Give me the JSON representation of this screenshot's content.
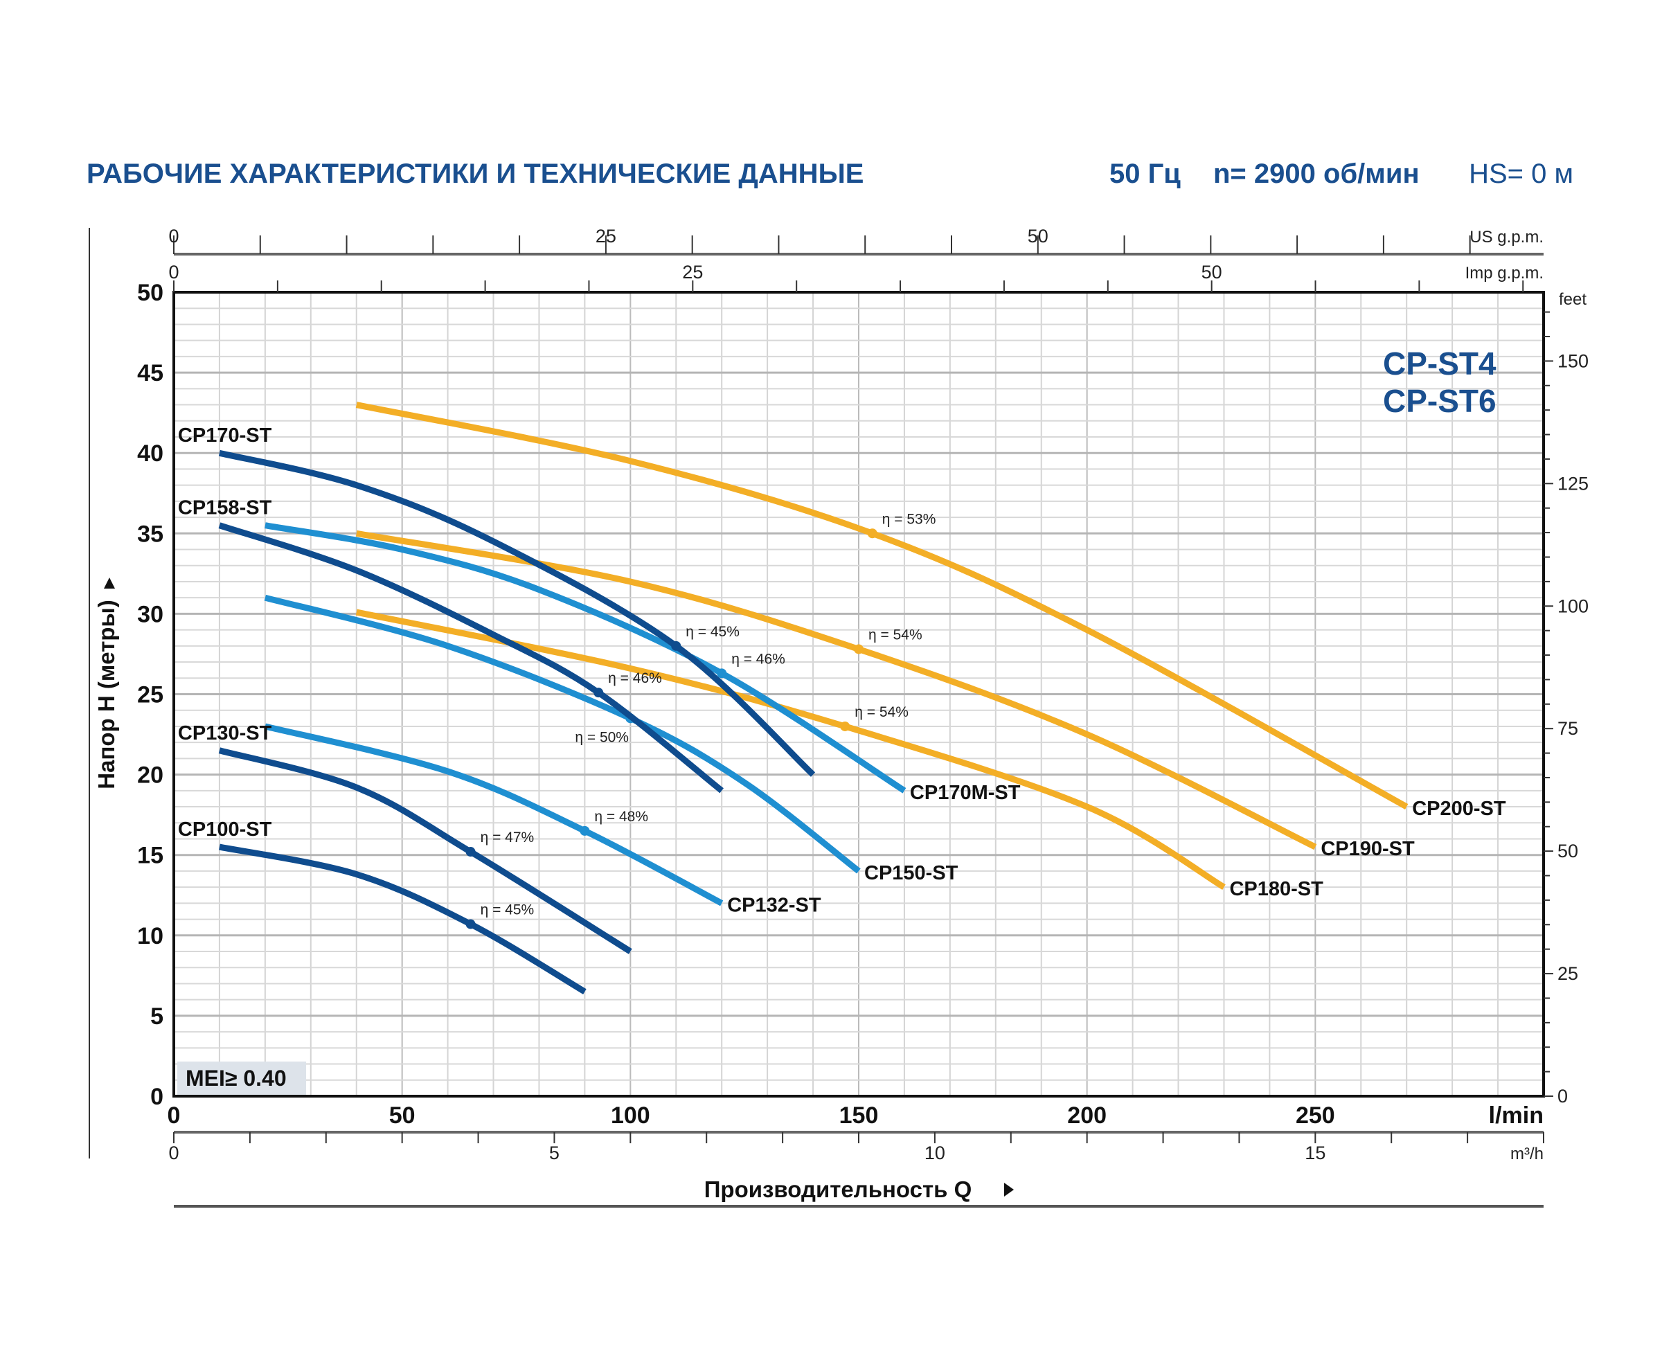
{
  "header": {
    "title": "РАБОЧИЕ ХАРАКТЕРИСТИКИ И ТЕХНИЧЕСКИЕ ДАННЫЕ",
    "frequency": "50 Гц",
    "speed": "n= 2900 об/мин",
    "hs": "HS= 0 м"
  },
  "series_names": [
    "CP-ST4",
    "CP-ST6"
  ],
  "mei_label": "MEI≥ 0.40",
  "colors": {
    "dark": "#0f4c8e",
    "light": "#1f8fd1",
    "orange": "#f3ae26",
    "title": "#1a4f8f"
  },
  "chart_data": {
    "type": "line",
    "xlabel": "Производительность Q",
    "ylabel": "Напор H (метры)",
    "xlim": [
      0,
      300
    ],
    "ylim": [
      0,
      50
    ],
    "x_unit": "l/min",
    "x_ticks": [
      0,
      50,
      100,
      150,
      200,
      250
    ],
    "y_ticks": [
      0,
      5,
      10,
      15,
      20,
      25,
      30,
      35,
      40,
      45,
      50
    ],
    "grid": true,
    "secondary_axes": {
      "us_gpm": {
        "unit": "US g.p.m.",
        "ticks": [
          0,
          25,
          50
        ]
      },
      "imp_gpm": {
        "unit": "Imp g.p.m.",
        "ticks": [
          0,
          25,
          50
        ]
      },
      "m3h": {
        "unit": "m³/h",
        "ticks": [
          0,
          5,
          10,
          15
        ]
      },
      "feet": {
        "unit": "feet",
        "ticks": [
          0,
          25,
          50,
          75,
          100,
          125,
          150
        ]
      }
    },
    "series": [
      {
        "name": "CP200-ST",
        "color": "orange",
        "label_side": "end",
        "x": [
          40,
          100,
          153,
          200,
          270
        ],
        "y": [
          43,
          39.5,
          35,
          29,
          18
        ],
        "eff": {
          "x": 153,
          "y": 35,
          "label": "η = 53%"
        }
      },
      {
        "name": "CP190-ST",
        "color": "orange",
        "label_side": "end",
        "x": [
          40,
          100,
          150,
          200,
          250
        ],
        "y": [
          35,
          32,
          27.8,
          22.5,
          15.5
        ],
        "eff": {
          "x": 150,
          "y": 27.8,
          "label": "η = 54%"
        }
      },
      {
        "name": "CP180-ST",
        "color": "orange",
        "label_side": "end",
        "x": [
          40,
          100,
          147,
          200,
          230
        ],
        "y": [
          30.1,
          26.6,
          23,
          18,
          13
        ],
        "eff": {
          "x": 147,
          "y": 23,
          "label": "η = 54%"
        }
      },
      {
        "name": "CP170M-ST",
        "color": "light",
        "label_side": "end",
        "x": [
          20,
          50,
          80,
          120,
          160
        ],
        "y": [
          35.5,
          34,
          31.5,
          26.3,
          19
        ],
        "eff": {
          "x": 120,
          "y": 26.3,
          "label": "η = 46%"
        }
      },
      {
        "name": "CP150-ST",
        "color": "light",
        "label_side": "end",
        "x": [
          20,
          60,
          100,
          125,
          150
        ],
        "y": [
          31,
          28,
          23.5,
          19.5,
          14
        ],
        "eff": {
          "x": 100,
          "y": 23.5,
          "label": "η = 50%"
        }
      },
      {
        "name": "CP132-ST",
        "color": "light",
        "label_side": "end",
        "x": [
          20,
          60,
          90,
          120
        ],
        "y": [
          23,
          20.2,
          16.5,
          12
        ],
        "eff": {
          "x": 90,
          "y": 16.5,
          "label": "η = 48%"
        }
      },
      {
        "name": "CP170-ST",
        "color": "dark",
        "label_side": "start",
        "x": [
          10,
          40,
          70,
          110,
          140
        ],
        "y": [
          40,
          38,
          34.5,
          28,
          20
        ],
        "eff": {
          "x": 110,
          "y": 28,
          "label": "η = 45%"
        }
      },
      {
        "name": "CP158-ST",
        "color": "dark",
        "label_side": "start",
        "x": [
          10,
          40,
          70,
          93,
          120
        ],
        "y": [
          35.5,
          32.7,
          28.7,
          25.1,
          19
        ],
        "eff": {
          "x": 93,
          "y": 25.1,
          "label": "η = 46%"
        }
      },
      {
        "name": "CP130-ST",
        "color": "dark",
        "label_side": "start",
        "x": [
          10,
          40,
          65,
          100
        ],
        "y": [
          21.5,
          19.2,
          15.2,
          9
        ],
        "eff": {
          "x": 65,
          "y": 15.2,
          "label": "η = 47%"
        }
      },
      {
        "name": "CP100-ST",
        "color": "dark",
        "label_side": "start",
        "x": [
          10,
          40,
          65,
          90
        ],
        "y": [
          15.5,
          13.8,
          10.7,
          6.5
        ],
        "eff": {
          "x": 65,
          "y": 10.7,
          "label": "η = 45%"
        }
      }
    ]
  }
}
